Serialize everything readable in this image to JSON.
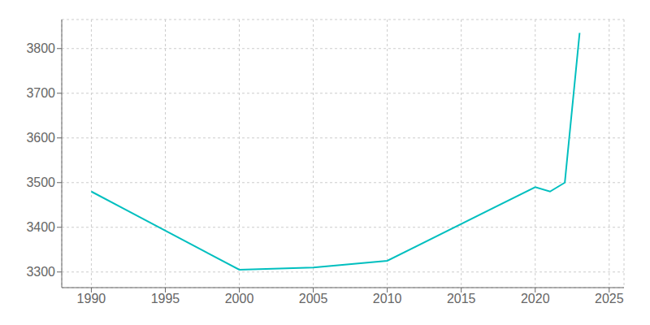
{
  "chart_data": {
    "type": "line",
    "x": [
      1990,
      2000,
      2005,
      2010,
      2020,
      2021,
      2022,
      2023
    ],
    "values": [
      3480,
      3305,
      3310,
      3325,
      3490,
      3480,
      3500,
      3835
    ],
    "color": "#00BFBF",
    "xlim": [
      1988,
      2026
    ],
    "ylim": [
      3265,
      3865
    ],
    "xticks": [
      1990,
      1995,
      2000,
      2005,
      2010,
      2015,
      2020,
      2025
    ],
    "yticks": [
      3300,
      3400,
      3500,
      3600,
      3700,
      3800
    ],
    "grid": true
  }
}
